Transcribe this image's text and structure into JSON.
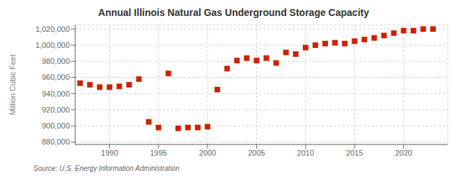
{
  "chart_data": {
    "type": "scatter",
    "title": "Annual Illinois Natural Gas Underground Storage Capacity",
    "y_label": "Million Cubic Feet",
    "annotations": [
      "Source: U.S. Energy Information Administration"
    ],
    "x": [
      1987,
      1988,
      1989,
      1990,
      1991,
      1992,
      1993,
      1994,
      1995,
      1996,
      1997,
      1998,
      1999,
      2000,
      2001,
      2002,
      2003,
      2004,
      2005,
      2006,
      2007,
      2008,
      2009,
      2010,
      2011,
      2012,
      2013,
      2014,
      2015,
      2016,
      2017,
      2018,
      2019,
      2020,
      2021,
      2022,
      2023
    ],
    "values": [
      953000,
      951000,
      948000,
      948000,
      949000,
      951000,
      958000,
      905000,
      898000,
      965000,
      897000,
      898000,
      898000,
      899000,
      945000,
      971000,
      981000,
      984000,
      981000,
      984000,
      978000,
      991000,
      989000,
      997000,
      1000000,
      1002000,
      1003000,
      1002000,
      1005000,
      1007000,
      1009000,
      1012000,
      1015000,
      1018000,
      1018000,
      1020000,
      1020000
    ],
    "color": "#cc2200",
    "marker": "square",
    "xlim": [
      1986.5,
      2024.5
    ],
    "xticks": [
      1990,
      1995,
      2000,
      2005,
      2010,
      2015,
      2020
    ],
    "ylim": [
      877000,
      1025000
    ],
    "yticks": [
      {
        "value": 880000,
        "label": "880,000"
      },
      {
        "value": 900000,
        "label": "900,000"
      },
      {
        "value": 920000,
        "label": "920,000"
      },
      {
        "value": 940000,
        "label": "940,000"
      },
      {
        "value": 960000,
        "label": "960,000"
      },
      {
        "value": 980000,
        "label": "980,000"
      },
      {
        "value": 1000000,
        "label": "1,000,000"
      },
      {
        "value": 1020000,
        "label": "1,020,000"
      }
    ],
    "grid": true
  }
}
